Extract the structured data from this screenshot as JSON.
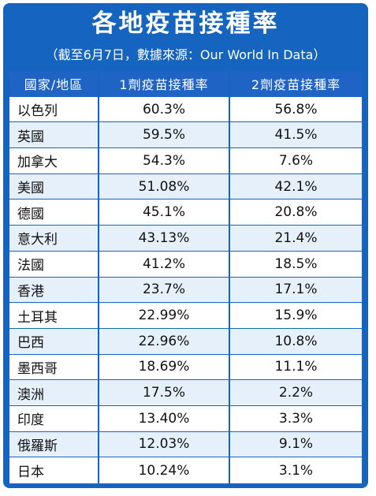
{
  "title": "各地疫苗接種率",
  "subtitle": "（截至6月7日，數據來源：Our World In Data）",
  "colors": {
    "frame": "#1565c0",
    "header": "#1f63c4",
    "row_alt": "#e6f0fb"
  },
  "chart_data": {
    "type": "table",
    "columns": [
      "國家/地區",
      "1劑疫苗接種率",
      "2劑疫苗接種率"
    ],
    "rows": [
      [
        "以色列",
        "60.3%",
        "56.8%"
      ],
      [
        "英國",
        "59.5%",
        "41.5%"
      ],
      [
        "加拿大",
        "54.3%",
        "7.6%"
      ],
      [
        "美國",
        "51.08%",
        "42.1%"
      ],
      [
        "德國",
        "45.1%",
        "20.8%"
      ],
      [
        "意大利",
        "43.13%",
        "21.4%"
      ],
      [
        "法國",
        "41.2%",
        "18.5%"
      ],
      [
        "香港",
        "23.7%",
        "17.1%"
      ],
      [
        "土耳其",
        "22.99%",
        "15.9%"
      ],
      [
        "巴西",
        "22.96%",
        "10.8%"
      ],
      [
        "墨西哥",
        "18.69%",
        "11.1%"
      ],
      [
        "澳洲",
        "17.5%",
        "2.2%"
      ],
      [
        "印度",
        "13.40%",
        "3.3%"
      ],
      [
        "俄羅斯",
        "12.03%",
        "9.1%"
      ],
      [
        "日本",
        "10.24%",
        "3.1%"
      ]
    ]
  }
}
